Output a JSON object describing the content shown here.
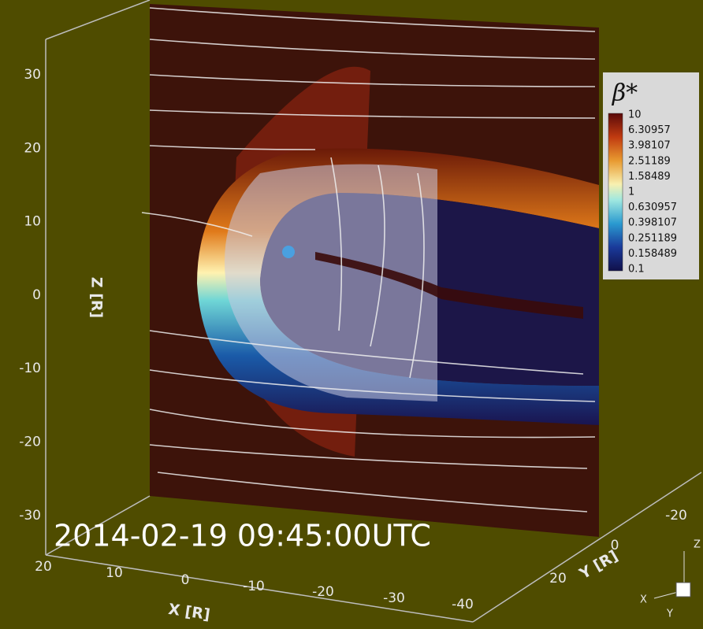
{
  "figure": {
    "timestamp": "2014-02-19 09:45:00UTC",
    "z_axis": {
      "label": "Z [R]",
      "ticks": [
        "30",
        "20",
        "10",
        "0",
        "-10",
        "-20",
        "-30"
      ]
    },
    "x_axis": {
      "label": "X [R]",
      "ticks": [
        "20",
        "10",
        "0",
        "-10",
        "-20",
        "-30",
        "-40"
      ]
    },
    "y_axis": {
      "label": "Y [R]",
      "ticks": [
        "-20",
        "0",
        "20"
      ]
    },
    "colorbar": {
      "title": "β*",
      "levels": [
        "10",
        "6.30957",
        "3.98107",
        "2.51189",
        "1.58489",
        "1",
        "0.630957",
        "0.398107",
        "0.251189",
        "0.158489",
        "0.1"
      ]
    },
    "triad": {
      "x": "X",
      "y": "Y",
      "z": "Z"
    }
  }
}
